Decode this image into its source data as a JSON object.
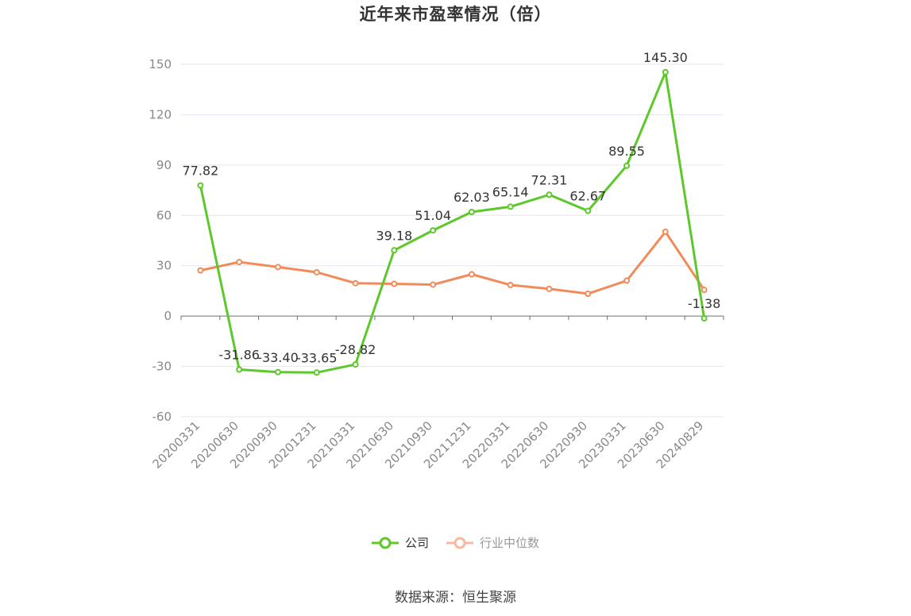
{
  "title": "近年来市盈率情况（倍）",
  "source": "数据来源：恒生聚源",
  "chart_data": {
    "type": "line",
    "title": "近年来市盈率情况（倍）",
    "xlabel": "",
    "ylabel": "",
    "categories": [
      "20200331",
      "20200630",
      "20200930",
      "20201231",
      "20210331",
      "20210630",
      "20210930",
      "20211231",
      "20220331",
      "20220630",
      "20220930",
      "20230331",
      "20230630",
      "20240829"
    ],
    "ylim": [
      -60,
      150
    ],
    "yticks": [
      -60,
      -30,
      0,
      30,
      60,
      90,
      120,
      150
    ],
    "grid": true,
    "legend_position": "bottom",
    "series": [
      {
        "name": "公司",
        "color": "#5dc82a",
        "values": [
          77.82,
          -31.86,
          -33.4,
          -33.65,
          -28.82,
          39.18,
          51.04,
          62.03,
          65.14,
          72.31,
          62.67,
          89.55,
          145.3,
          -1.38
        ],
        "labels": [
          "77.82",
          "-31.86",
          "-33.40",
          "-33.65",
          "-28.82",
          "39.18",
          "51.04",
          "62.03",
          "65.14",
          "72.31",
          "62.67",
          "89.55",
          "145.30",
          "-1.38"
        ]
      },
      {
        "name": "行业中位数",
        "color": "#f28b5a",
        "values": [
          27.2,
          32.2,
          29.2,
          26.1,
          19.6,
          19.2,
          18.7,
          24.9,
          18.5,
          16.2,
          13.3,
          21.1,
          50.2,
          15.6
        ]
      }
    ]
  },
  "legend": [
    {
      "label": "公司",
      "color": "#5dc82a",
      "active": true,
      "icon": "circle-line-icon"
    },
    {
      "label": "行业中位数",
      "color": "#f8b9a0",
      "active": false,
      "icon": "circle-line-icon"
    }
  ]
}
